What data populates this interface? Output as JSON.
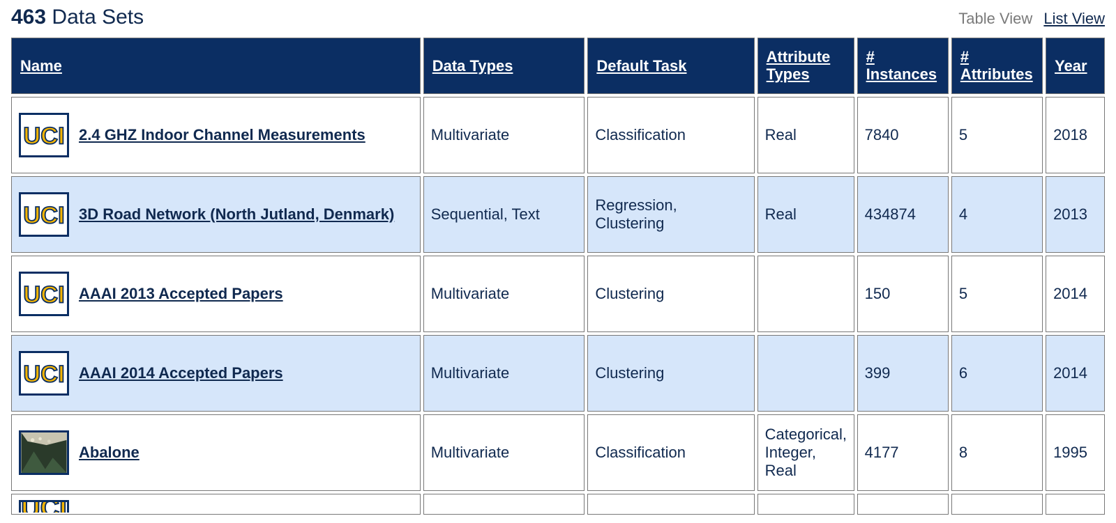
{
  "title": {
    "count": "463",
    "label": "Data Sets"
  },
  "views": {
    "table": "Table View",
    "list": "List View"
  },
  "columns": {
    "name": "Name",
    "data_types": "Data Types",
    "default_task": "Default Task",
    "attr_types": "Attribute Types",
    "instances": "# Instances",
    "attributes": "# Attributes",
    "year": "Year"
  },
  "rows": [
    {
      "icon": "uci",
      "name": "2.4 GHZ Indoor Channel Measurements",
      "data_types": "Multivariate",
      "default_task": "Classification",
      "attr_types": "Real",
      "instances": "7840",
      "attributes": "5",
      "year": "2018"
    },
    {
      "icon": "uci",
      "name": "3D Road Network (North Jutland, Denmark)",
      "data_types": "Sequential, Text",
      "default_task": "Regression, Clustering",
      "attr_types": "Real",
      "instances": "434874",
      "attributes": "4",
      "year": "2013"
    },
    {
      "icon": "uci",
      "name": "AAAI 2013 Accepted Papers",
      "data_types": "Multivariate",
      "default_task": "Clustering",
      "attr_types": "",
      "instances": "150",
      "attributes": "5",
      "year": "2014"
    },
    {
      "icon": "uci",
      "name": "AAAI 2014 Accepted Papers",
      "data_types": "Multivariate",
      "default_task": "Clustering",
      "attr_types": "",
      "instances": "399",
      "attributes": "6",
      "year": "2014"
    },
    {
      "icon": "photo",
      "name": "Abalone",
      "data_types": "Multivariate",
      "default_task": "Classification",
      "attr_types": "Categorical, Integer, Real",
      "instances": "4177",
      "attributes": "8",
      "year": "1995"
    }
  ],
  "style": {
    "header_bg": "#0b2e63",
    "alt_row_bg": "#d6e6fa",
    "text_color": "#10294f",
    "border_color": "#777777",
    "uci_letter_fill": "#f4b400",
    "uci_letter_stroke": "#0b2e63"
  }
}
